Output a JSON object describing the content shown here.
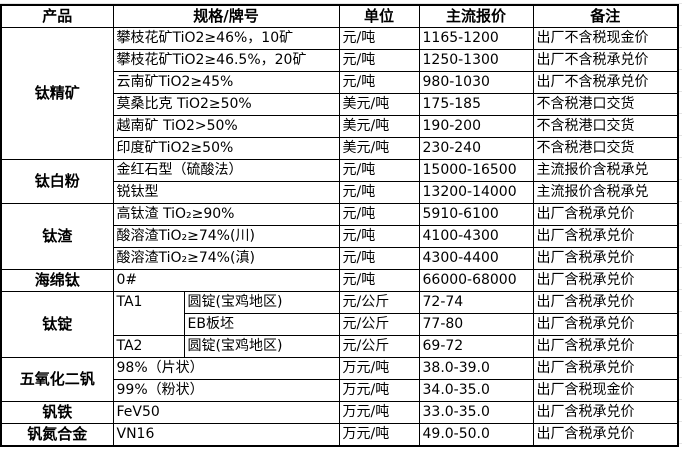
{
  "headers": {
    "product": "产品",
    "spec": "规格/牌号",
    "unit": "单位",
    "price": "主流报价",
    "note": "备注"
  },
  "groups": [
    {
      "product": "钛精矿",
      "rows": [
        {
          "spec": "攀枝花矿TiO2≥46%，10矿",
          "unit": "元/吨",
          "price": "1165-1200",
          "note": "出厂不含税现金价"
        },
        {
          "spec": "攀枝花矿TiO2≥46.5%，20矿",
          "unit": "元/吨",
          "price": "1250-1300",
          "note": "出厂不含税承兑价"
        },
        {
          "spec": "云南矿TiO2≥45%",
          "unit": "元/吨",
          "price": "980-1030",
          "note": "出厂不含税承兑价"
        },
        {
          "spec": "莫桑比克 TiO2≥50%",
          "unit": "美元/吨",
          "price": "175-185",
          "note": "不含税港口交货"
        },
        {
          "spec": "越南矿 TiO2>50%",
          "unit": "美元/吨",
          "price": "190-200",
          "note": "不含税港口交货"
        },
        {
          "spec": "印度矿TiO2≥50%",
          "unit": "美元/吨",
          "price": "230-240",
          "note": "不含税港口交货"
        }
      ]
    },
    {
      "product": "钛白粉",
      "rows": [
        {
          "spec": "金红石型（硫酸法）",
          "unit": "元/吨",
          "price": "15000-16500",
          "note": "主流报价含税承兑"
        },
        {
          "spec": "锐钛型",
          "unit": "元/吨",
          "price": "13200-14000",
          "note": "主流报价含税承兑"
        }
      ]
    },
    {
      "product": "钛渣",
      "rows": [
        {
          "spec": "高钛渣 TiO₂≥90%",
          "unit": "元/吨",
          "price": "5910-6100",
          "note": "出厂含税承兑价"
        },
        {
          "spec": "酸溶渣TiO₂≥74%(川)",
          "unit": "元/吨",
          "price": "4100-4300",
          "note": "出厂含税承兑价"
        },
        {
          "spec": "酸溶渣TiO₂≥74%(滇)",
          "unit": "元/吨",
          "price": "4300-4400",
          "note": "出厂含税承兑价"
        }
      ]
    },
    {
      "product": "海绵钛",
      "rows": [
        {
          "spec": "0#",
          "unit": "元/吨",
          "price": "66000-68000",
          "note": "出厂含税承兑价"
        }
      ]
    },
    {
      "product": "钛锭",
      "rows": [
        {
          "grade": "TA1",
          "form": "圆锭(宝鸡地区)",
          "unit": "元/公斤",
          "price": "72-74",
          "note": "出厂含税承兑价"
        },
        {
          "form": "EB板坯",
          "unit": "元/公斤",
          "price": "77-80",
          "note": "出厂含税承兑价"
        },
        {
          "grade": "TA2",
          "form": "圆锭(宝鸡地区)",
          "unit": "元/公斤",
          "price": "69-72",
          "note": "出厂含税承兑价"
        }
      ]
    },
    {
      "product": "五氧化二钒",
      "rows": [
        {
          "spec": "98%（片状）",
          "unit": "万元/吨",
          "price": "38.0-39.0",
          "note": "出厂含税承兑价"
        },
        {
          "spec": "99%（粉状）",
          "unit": "万元/吨",
          "price": "34.0-35.0",
          "note": "出厂含税现金价"
        }
      ]
    },
    {
      "product": "钒铁",
      "rows": [
        {
          "spec": "FeV50",
          "unit": "万元/吨",
          "price": "33.0-35.0",
          "note": "出厂含税承兑价"
        }
      ]
    },
    {
      "product": "钒氮合金",
      "rows": [
        {
          "spec": "VN16",
          "unit": "万元/吨",
          "price": "49.0-50.0",
          "note": "出厂含税承兑价"
        }
      ]
    }
  ]
}
